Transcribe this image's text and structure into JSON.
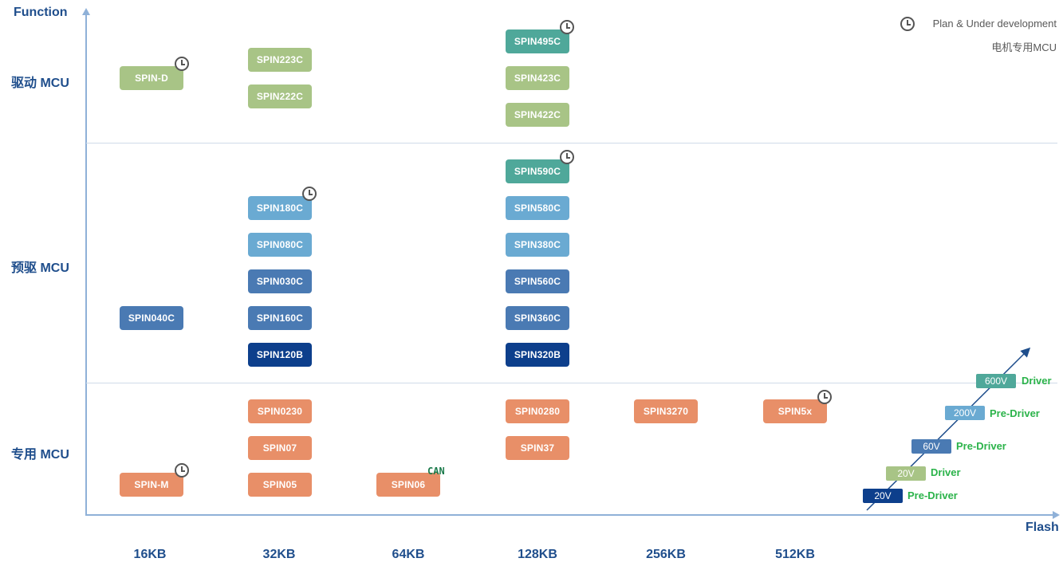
{
  "axes": {
    "y_title": "Function",
    "x_title": "Flash",
    "rows": [
      "驱动 MCU",
      "预驱 MCU",
      "专用 MCU"
    ],
    "cols": [
      "16KB",
      "32KB",
      "64KB",
      "128KB",
      "256KB",
      "512KB"
    ]
  },
  "legend": {
    "plan": "Plan & Under development",
    "dedicated": "电机专用MCU"
  },
  "chips": {
    "spin_d": "SPIN-D",
    "spin223c": "SPIN223C",
    "spin222c": "SPIN222C",
    "spin495c": "SPIN495C",
    "spin423c": "SPIN423C",
    "spin422c": "SPIN422C",
    "spin590c": "SPIN590C",
    "spin180c": "SPIN180C",
    "spin580c": "SPIN580C",
    "spin080c": "SPIN080C",
    "spin380c": "SPIN380C",
    "spin030c": "SPIN030C",
    "spin560c": "SPIN560C",
    "spin040c": "SPIN040C",
    "spin160c": "SPIN160C",
    "spin360c": "SPIN360C",
    "spin120b": "SPIN120B",
    "spin320b": "SPIN320B",
    "spin0230": "SPIN0230",
    "spin0280": "SPIN0280",
    "spin3270": "SPIN3270",
    "spin5x": "SPIN5x",
    "spin07": "SPIN07",
    "spin37": "SPIN37",
    "spin_m": "SPIN-M",
    "spin05": "SPIN05",
    "spin06": "SPIN06"
  },
  "can_tag": "CAN",
  "voltage_levels": [
    {
      "voltage": "600V",
      "type": "Driver"
    },
    {
      "voltage": "200V",
      "type": "Pre-Driver"
    },
    {
      "voltage": "60V",
      "type": "Pre-Driver"
    },
    {
      "voltage": "20V",
      "type": "Driver"
    },
    {
      "voltage": "20V",
      "type": "Pre-Driver"
    }
  ],
  "colors": {
    "light_green": "#a8c486",
    "teal": "#4fa89a",
    "light_blue": "#6aaad2",
    "medium_blue": "#4a7ab3",
    "dark_blue": "#0d3f8c",
    "orange": "#e88f68",
    "axis_text": "#1f4e8c",
    "voltage_label": "#2bb34a"
  }
}
